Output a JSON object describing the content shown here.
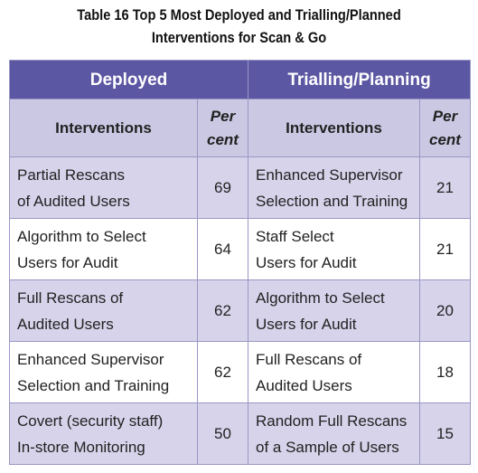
{
  "title": [
    "Table 16 Top 5 Most Deployed and Trialling/Planned",
    "Interventions for Scan & Go"
  ],
  "table": {
    "groups": [
      "Deployed",
      "Trialling/Planning"
    ],
    "columns": [
      "Interventions",
      "Per\ncent",
      "Interventions",
      "Per\ncent"
    ],
    "rows": [
      [
        "Partial Rescans\nof Audited Users",
        69,
        "Enhanced Supervisor\nSelection and Training",
        21
      ],
      [
        "Algorithm to Select\nUsers for Audit",
        64,
        "Staff Select\nUsers for Audit",
        21
      ],
      [
        "Full Rescans of\nAudited Users",
        62,
        "Algorithm to Select\nUsers for Audit",
        20
      ],
      [
        "Enhanced Supervisor\nSelection and Training",
        62,
        "Full Rescans of\nAudited Users",
        18
      ],
      [
        "Covert (security staff)\nIn-store Monitoring",
        50,
        "Random Full Rescans\nof a Sample of Users",
        15
      ]
    ]
  }
}
